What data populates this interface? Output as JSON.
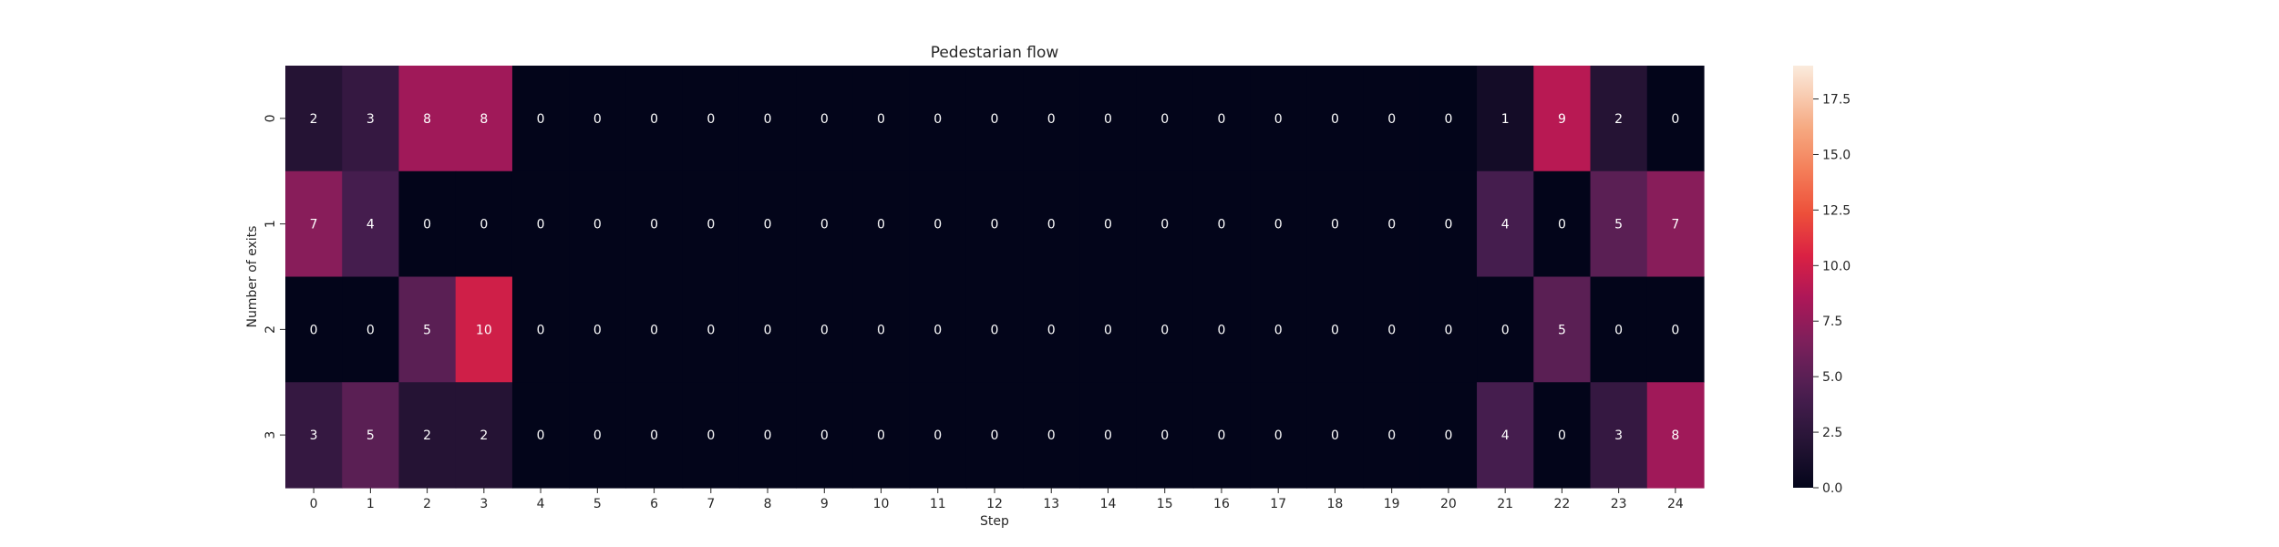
{
  "chart_data": {
    "type": "heatmap",
    "title": "Pedestarian flow",
    "xlabel": "Step",
    "ylabel": "Number of exits",
    "x_categories": [
      "0",
      "1",
      "2",
      "3",
      "4",
      "5",
      "6",
      "7",
      "8",
      "9",
      "10",
      "11",
      "12",
      "13",
      "14",
      "15",
      "16",
      "17",
      "18",
      "19",
      "20",
      "21",
      "22",
      "23",
      "24"
    ],
    "y_categories": [
      "0",
      "1",
      "2",
      "3"
    ],
    "values": [
      [
        2,
        3,
        8,
        8,
        0,
        0,
        0,
        0,
        0,
        0,
        0,
        0,
        0,
        0,
        0,
        0,
        0,
        0,
        0,
        0,
        0,
        1,
        9,
        2,
        0
      ],
      [
        7,
        4,
        0,
        0,
        0,
        0,
        0,
        0,
        0,
        0,
        0,
        0,
        0,
        0,
        0,
        0,
        0,
        0,
        0,
        0,
        0,
        4,
        0,
        5,
        7
      ],
      [
        0,
        0,
        5,
        10,
        0,
        0,
        0,
        0,
        0,
        0,
        0,
        0,
        0,
        0,
        0,
        0,
        0,
        0,
        0,
        0,
        0,
        0,
        5,
        0,
        0
      ],
      [
        3,
        5,
        2,
        2,
        0,
        0,
        0,
        0,
        0,
        0,
        0,
        0,
        0,
        0,
        0,
        0,
        0,
        0,
        0,
        0,
        0,
        4,
        0,
        3,
        8
      ]
    ],
    "colorbar": {
      "range": [
        0,
        19
      ],
      "ticks": [
        "0.0",
        "2.5",
        "5.0",
        "7.5",
        "10.0",
        "12.5",
        "15.0",
        "17.5"
      ],
      "colormap": "rocket"
    },
    "annotations": true
  }
}
